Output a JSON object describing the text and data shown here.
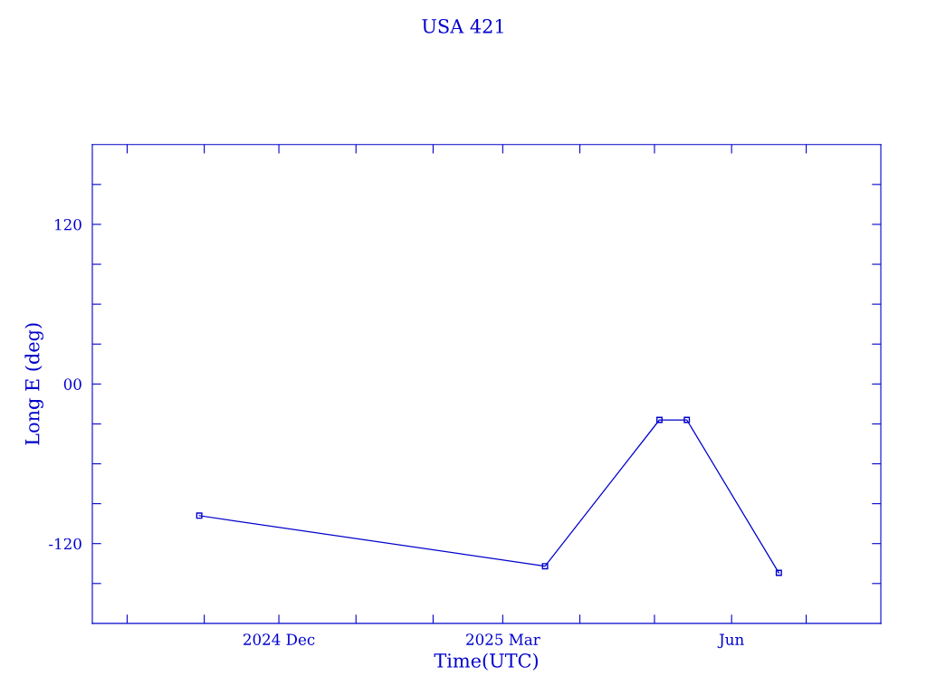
{
  "chart_data": {
    "type": "line",
    "title": "USA 421",
    "xlabel": "Time(UTC)",
    "ylabel": "Long E (deg)",
    "x": [
      "2024-10-30",
      "2025-03-18",
      "2025-05-03",
      "2025-05-14",
      "2025-06-20"
    ],
    "series": [
      {
        "color": "#0000cc",
        "values": [
          -99,
          -137,
          -27,
          -27,
          -142
        ]
      }
    ],
    "marker": "square",
    "line_style": "solid",
    "grid": false,
    "legend": false,
    "xlim": [
      "2024-09-17",
      "2025-07-31"
    ],
    "xticks": [
      {
        "value": "2024-10-01",
        "label": null
      },
      {
        "value": "2024-11-01",
        "label": null
      },
      {
        "value": "2024-12-01",
        "label": "2024 Dec"
      },
      {
        "value": "2025-01-01",
        "label": null
      },
      {
        "value": "2025-02-01",
        "label": null
      },
      {
        "value": "2025-03-01",
        "label": "2025 Mar"
      },
      {
        "value": "2025-04-01",
        "label": null
      },
      {
        "value": "2025-05-01",
        "label": null
      },
      {
        "value": "2025-06-01",
        "label": "Jun"
      },
      {
        "value": "2025-07-01",
        "label": null
      }
    ],
    "ylim": [
      -180,
      180
    ],
    "yticks": [
      {
        "value": -150,
        "label": null
      },
      {
        "value": -120,
        "label": "-120"
      },
      {
        "value": -90,
        "label": null
      },
      {
        "value": -60,
        "label": null
      },
      {
        "value": -30,
        "label": null
      },
      {
        "value": 0,
        "label": "00"
      },
      {
        "value": 30,
        "label": null
      },
      {
        "value": 60,
        "label": null
      },
      {
        "value": 90,
        "label": null
      },
      120,
      {
        "value": 150,
        "label": null
      }
    ]
  }
}
